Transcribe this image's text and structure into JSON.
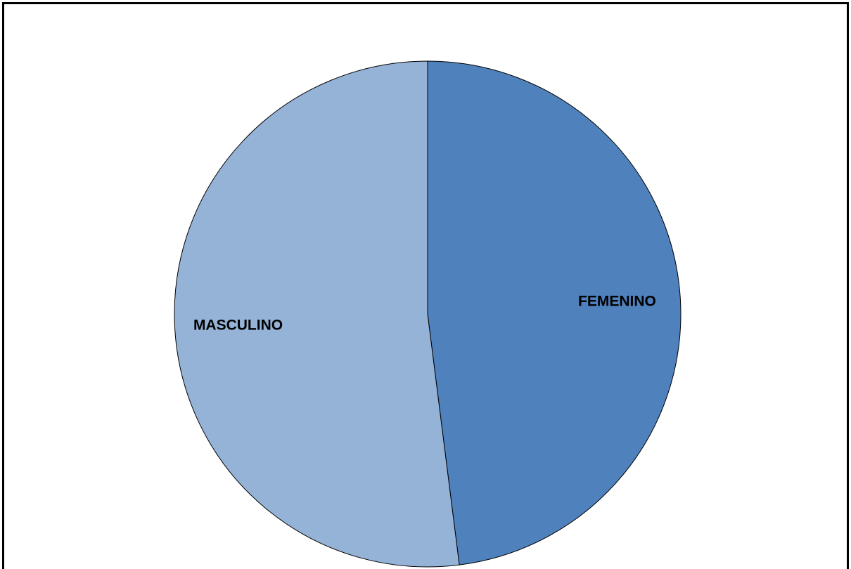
{
  "chart_data": {
    "type": "pie",
    "categories": [
      "FEMENINO",
      "MASCULINO"
    ],
    "values": [
      48,
      52
    ],
    "colors": [
      "#4f81bd",
      "#95b3d7"
    ]
  }
}
